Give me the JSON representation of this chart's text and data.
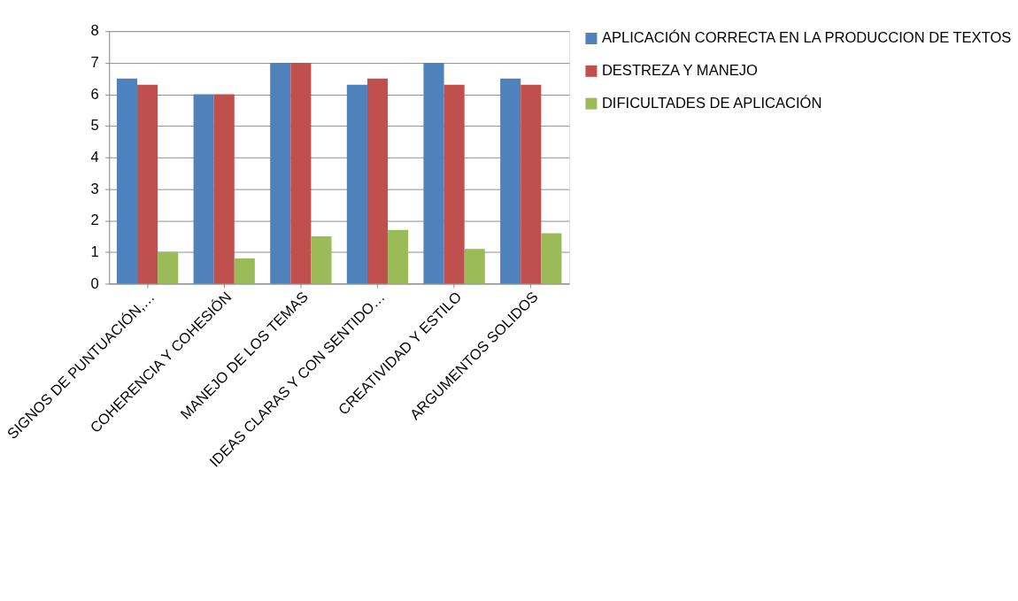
{
  "chart_data": {
    "type": "bar",
    "categories": [
      "SIGNOS DE PUNTUACIÓN,…",
      "COHERENCIA Y COHESIÓN",
      "MANEJO DE LOS TEMAS",
      "IDEAS CLARAS Y CON SENTIDO…",
      "CREATIVIDAD Y ESTILO",
      "ARGUMENTOS SOLIDOS"
    ],
    "series": [
      {
        "name": "APLICACIÓN CORRECTA EN LA PRODUCCION DE TEXTOS",
        "color": "#4f81bd",
        "values": [
          6.5,
          6.0,
          7.0,
          6.3,
          7.0,
          6.5
        ]
      },
      {
        "name": "DESTREZA Y MANEJO",
        "color": "#c0504d",
        "values": [
          6.3,
          6.0,
          7.0,
          6.5,
          6.3,
          6.3
        ]
      },
      {
        "name": "DIFICULTADES DE APLICACIÓN",
        "color": "#9bbb59",
        "values": [
          1.0,
          0.8,
          1.5,
          1.7,
          1.1,
          1.6
        ]
      }
    ],
    "ylim": [
      0,
      8
    ],
    "yticks": [
      0,
      1,
      2,
      3,
      4,
      5,
      6,
      7,
      8
    ],
    "grid": "y",
    "legend": "right"
  }
}
